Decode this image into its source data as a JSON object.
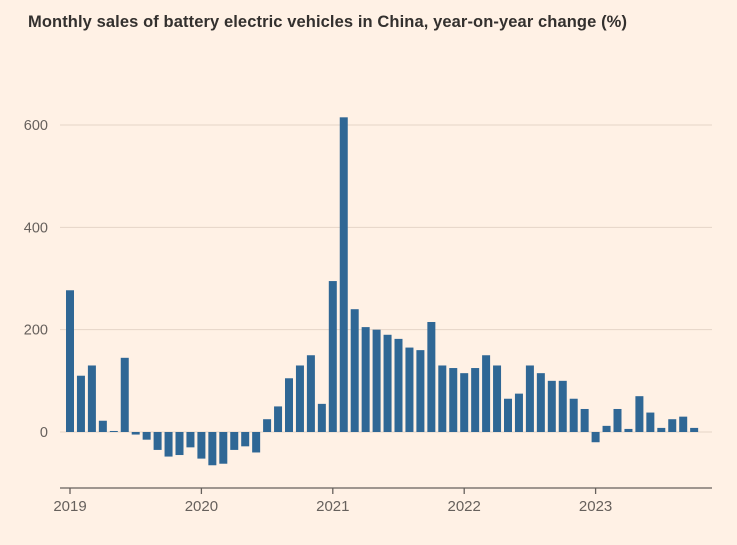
{
  "title": "Monthly sales of battery electric vehicles in China, year-on-year change (%)",
  "colors": {
    "background": "#FFF1E5",
    "bar": "#2F6795",
    "grid": "#E5D5C7",
    "axis_line": "#66605C",
    "title_text": "#33302E",
    "tick_text": "#66605C"
  },
  "chart_data": {
    "type": "bar",
    "title": "Monthly sales of battery electric vehicles in China, year-on-year change (%)",
    "xlabel": "",
    "ylabel": "year-on-year change (%)",
    "grid": true,
    "legend": "none",
    "yticks": [
      0,
      200,
      400,
      600
    ],
    "ylim": [
      -110,
      680
    ],
    "year_ticks": [
      "2019",
      "2020",
      "2021",
      "2022",
      "2023"
    ],
    "x": [
      "2019-01",
      "2019-02",
      "2019-03",
      "2019-04",
      "2019-05",
      "2019-06",
      "2019-07",
      "2019-08",
      "2019-09",
      "2019-10",
      "2019-11",
      "2019-12",
      "2020-01",
      "2020-02",
      "2020-03",
      "2020-04",
      "2020-05",
      "2020-06",
      "2020-07",
      "2020-08",
      "2020-09",
      "2020-10",
      "2020-11",
      "2020-12",
      "2021-01",
      "2021-02",
      "2021-03",
      "2021-04",
      "2021-05",
      "2021-06",
      "2021-07",
      "2021-08",
      "2021-09",
      "2021-10",
      "2021-11",
      "2021-12",
      "2022-01",
      "2022-02",
      "2022-03",
      "2022-04",
      "2022-05",
      "2022-06",
      "2022-07",
      "2022-08",
      "2022-09",
      "2022-10",
      "2022-11",
      "2022-12",
      "2023-01",
      "2023-02",
      "2023-03",
      "2023-04",
      "2023-05",
      "2023-06",
      "2023-07",
      "2023-08",
      "2023-09",
      "2023-10"
    ],
    "values": [
      277,
      110,
      130,
      22,
      2,
      145,
      -5,
      -15,
      -35,
      -48,
      -45,
      -30,
      -52,
      -65,
      -62,
      -35,
      -28,
      -40,
      25,
      50,
      105,
      130,
      150,
      55,
      295,
      615,
      240,
      205,
      200,
      190,
      182,
      165,
      160,
      215,
      130,
      125,
      115,
      125,
      150,
      130,
      65,
      75,
      130,
      115,
      100,
      100,
      65,
      45,
      -20,
      12,
      45,
      6,
      70,
      38,
      8,
      25,
      30,
      8
    ]
  }
}
